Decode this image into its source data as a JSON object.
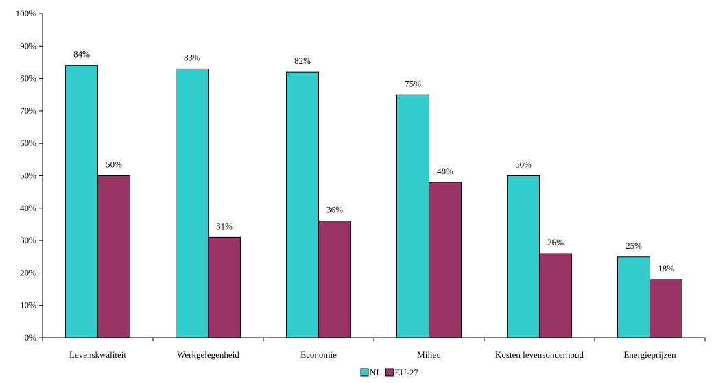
{
  "chart_data": {
    "type": "bar",
    "categories": [
      "Levenskwaliteit",
      "Werkgelegenheid",
      "Economie",
      "Milieu",
      "Kosten levensonderhoud",
      "Energieprijzen"
    ],
    "series": [
      {
        "name": "NL",
        "values": [
          84,
          83,
          82,
          75,
          50,
          25
        ],
        "labels": [
          "84%",
          "83%",
          "82%",
          "75%",
          "50%",
          "25%"
        ]
      },
      {
        "name": "EU-27",
        "values": [
          50,
          31,
          36,
          48,
          26,
          18
        ],
        "labels": [
          "50%",
          "31%",
          "36%",
          "48%",
          "26%",
          "18%"
        ]
      }
    ],
    "y_ticks": [
      "0%",
      "10%",
      "20%",
      "30%",
      "40%",
      "50%",
      "60%",
      "70%",
      "80%",
      "90%",
      "100%"
    ],
    "ylim": [
      0,
      100
    ],
    "grid": false,
    "legend": "bottom-center",
    "colors": {
      "NL": "#33CCCC",
      "EU-27": "#993366",
      "axis": "#000000",
      "bar_outline": "#000000"
    }
  }
}
